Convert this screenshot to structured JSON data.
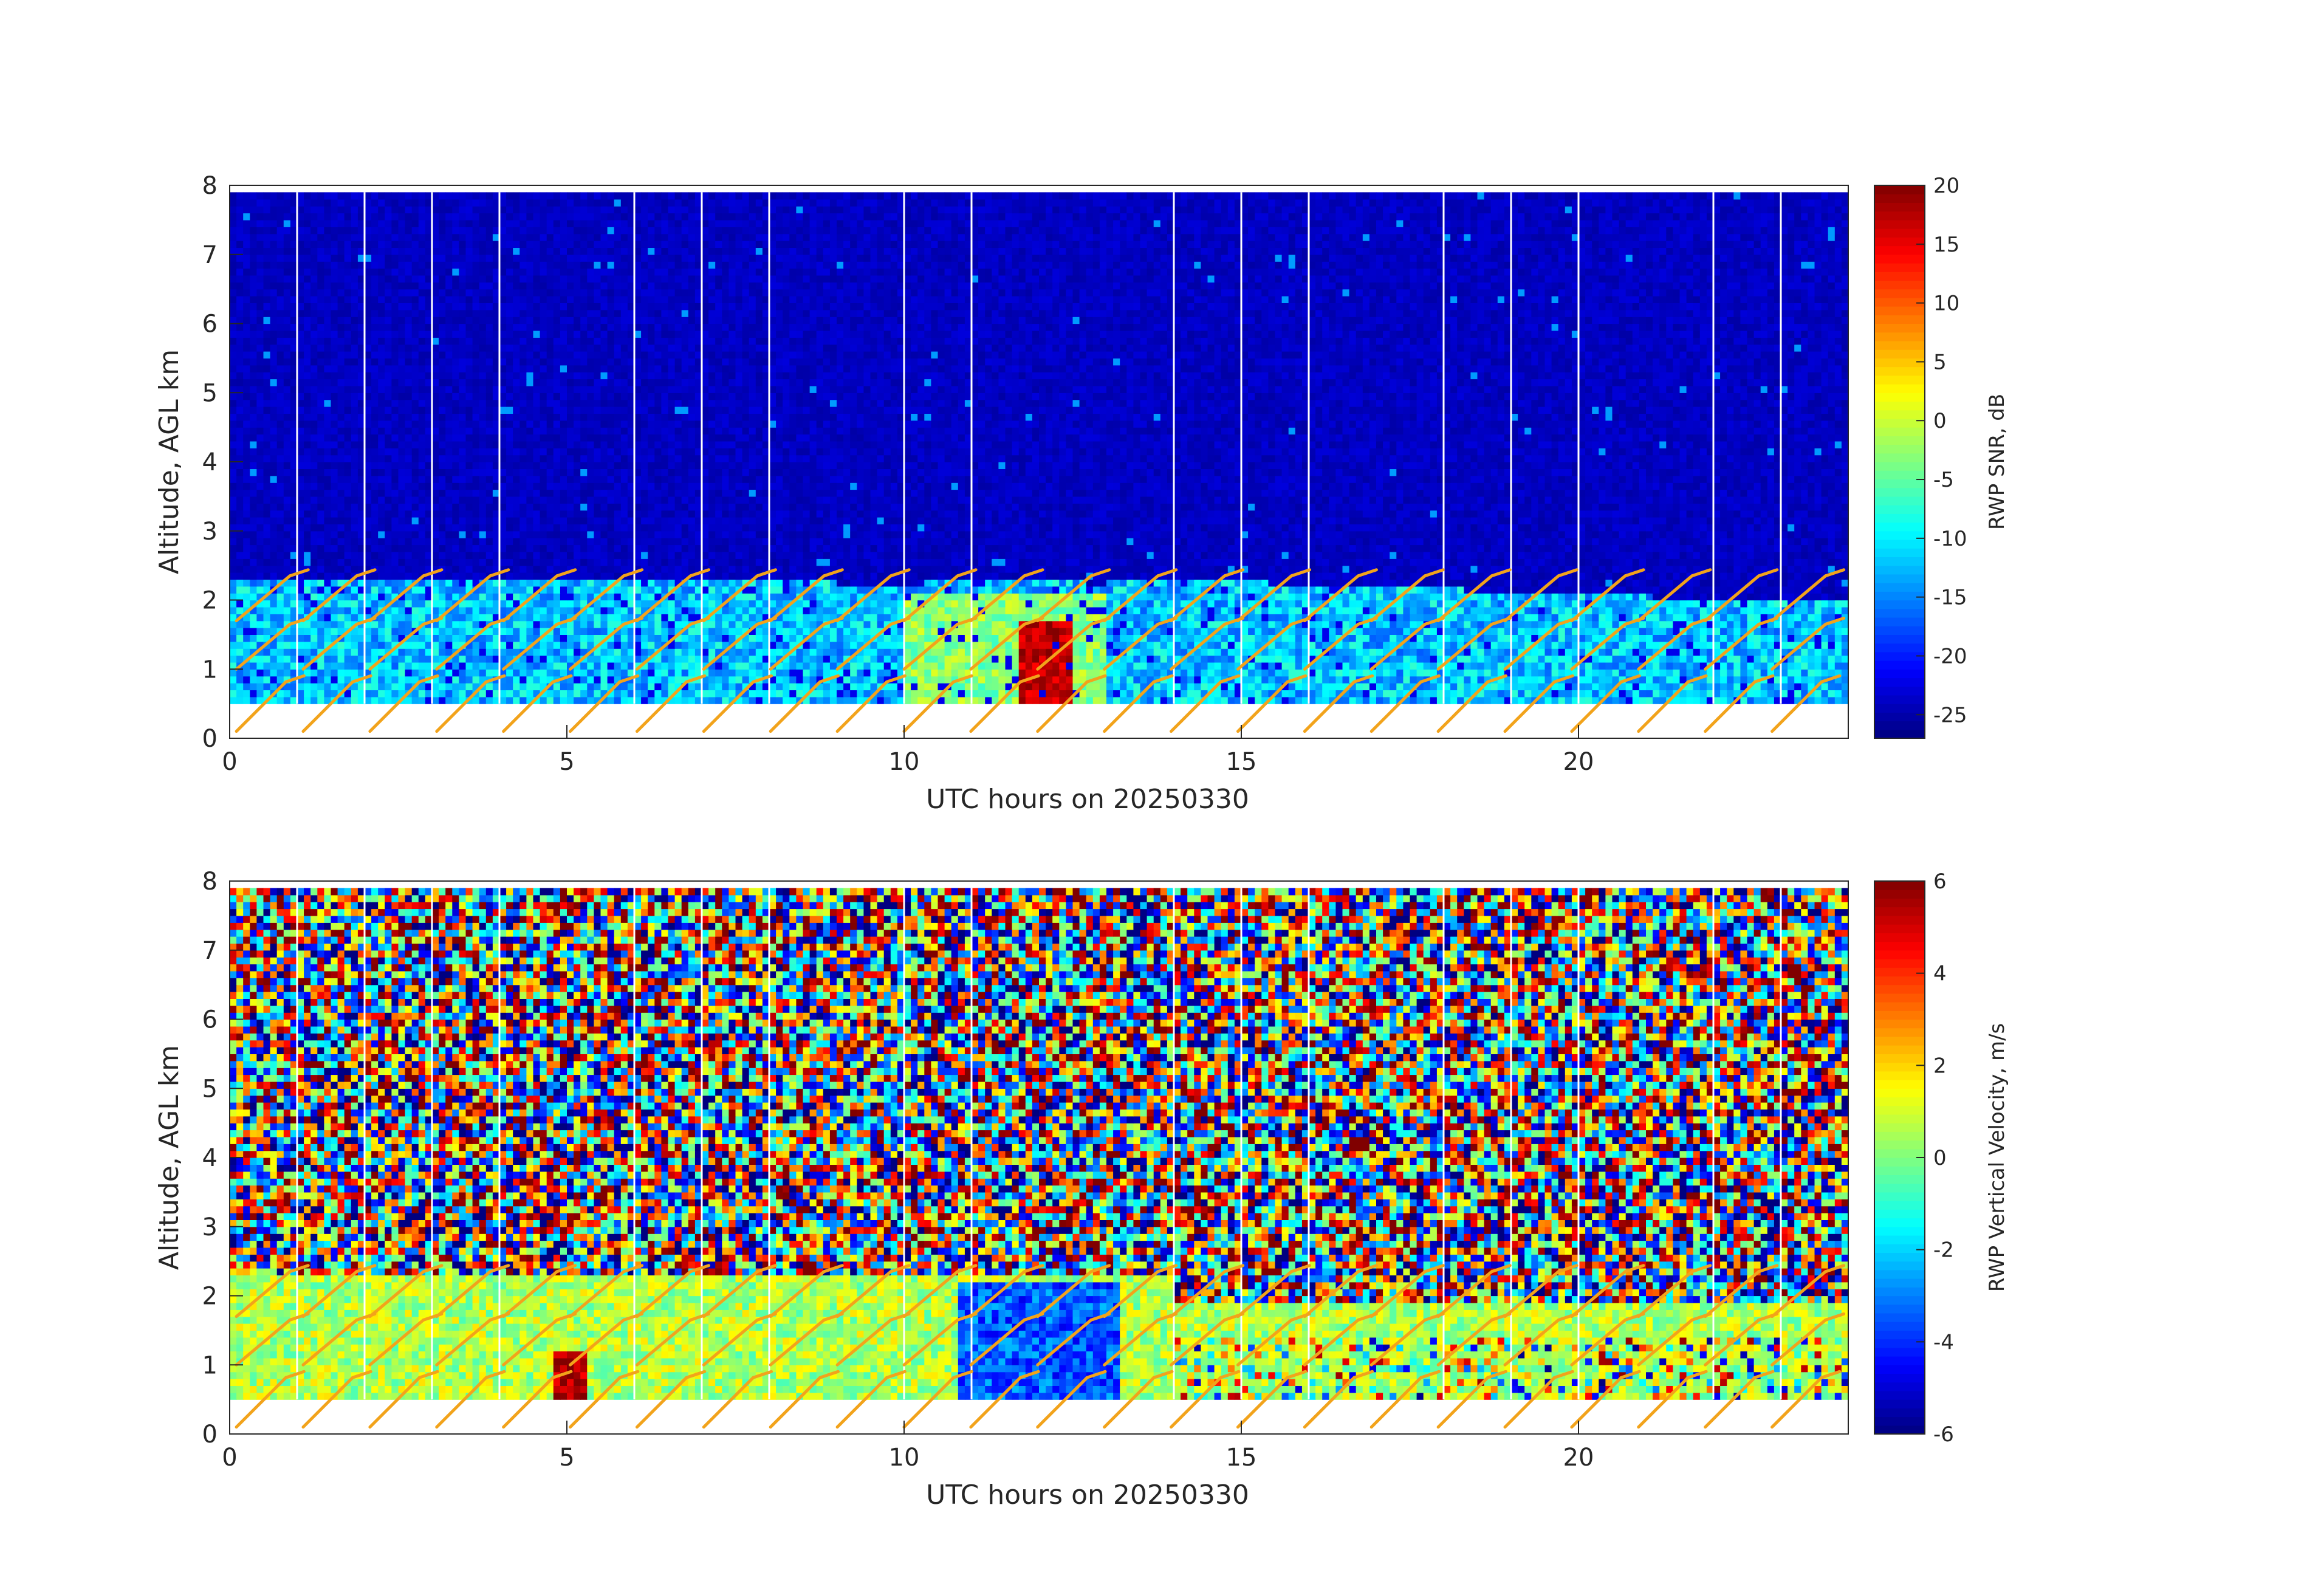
{
  "chart_data": [
    {
      "type": "heatmap",
      "title": "",
      "xlabel": "UTC hours on 20250330",
      "ylabel": "Altitude, AGL km",
      "xlim": [
        0,
        24
      ],
      "ylim": [
        0,
        8
      ],
      "xticks": [
        0,
        5,
        10,
        15,
        20
      ],
      "yticks": [
        0,
        1,
        2,
        3,
        4,
        5,
        6,
        7,
        8
      ],
      "data_altitude_range_km": [
        0.5,
        7.9
      ],
      "hourly_gap_lines_utc": [
        1,
        2,
        3,
        4,
        6,
        7,
        8,
        10,
        11,
        14,
        15,
        16,
        18,
        19,
        20,
        22,
        23
      ],
      "colorbar": {
        "label": "RWP SNR, dB",
        "range": [
          -27,
          20
        ],
        "ticks": [
          -25,
          -20,
          -15,
          -10,
          -5,
          0,
          5,
          10,
          15,
          20
        ],
        "colormap": "jet"
      },
      "features": [
        {
          "name": "background noise",
          "value": -24,
          "alt_range_km": [
            2.4,
            7.9
          ]
        },
        {
          "name": "boundary layer echo",
          "value": -10,
          "alt_range_km": [
            0.5,
            2.3
          ]
        },
        {
          "name": "strong echo core",
          "value": 18,
          "x_range_utc": [
            11.7,
            12.5
          ],
          "alt_range_km": [
            0.5,
            1.7
          ]
        }
      ],
      "wind_barbs": {
        "color": "#f2a31b",
        "x_range_utc": [
          0,
          23.5
        ],
        "alt_range_km": [
          0,
          3
        ]
      }
    },
    {
      "type": "heatmap",
      "title": "",
      "xlabel": "UTC hours on 20250330",
      "ylabel": "Altitude, AGL km",
      "xlim": [
        0,
        24
      ],
      "ylim": [
        0,
        8
      ],
      "xticks": [
        0,
        5,
        10,
        15,
        20
      ],
      "yticks": [
        0,
        1,
        2,
        3,
        4,
        5,
        6,
        7,
        8
      ],
      "data_altitude_range_km": [
        0.5,
        7.9
      ],
      "hourly_gap_lines_utc": [
        1,
        2,
        3,
        4,
        6,
        7,
        8,
        10,
        11,
        14,
        15,
        16,
        18,
        19,
        20,
        22,
        23
      ],
      "colorbar": {
        "label": "RWP Vertical Velocity, m/s",
        "range": [
          -6,
          6
        ],
        "ticks": [
          -6,
          -4,
          -2,
          0,
          2,
          4,
          6
        ],
        "colormap": "jet"
      },
      "features": [
        {
          "name": "noise region (random)",
          "value_range": [
            -6,
            6
          ],
          "alt_range_km": [
            2.4,
            7.9
          ]
        },
        {
          "name": "boundary layer",
          "value": 0.5,
          "alt_range_km": [
            0.5,
            2.3
          ]
        },
        {
          "name": "updraft spot",
          "value": 5,
          "x_range_utc": [
            4.8,
            5.3
          ],
          "alt_range_km": [
            0.5,
            1.2
          ]
        },
        {
          "name": "downdraft region",
          "value": -4.5,
          "x_range_utc": [
            10.8,
            13.2
          ],
          "alt_range_km": [
            0.5,
            2.2
          ]
        }
      ],
      "wind_barbs": {
        "color": "#f2a31b",
        "x_range_utc": [
          0,
          23.5
        ],
        "alt_range_km": [
          0,
          3
        ]
      }
    }
  ],
  "barb_color": "#f2a31b"
}
